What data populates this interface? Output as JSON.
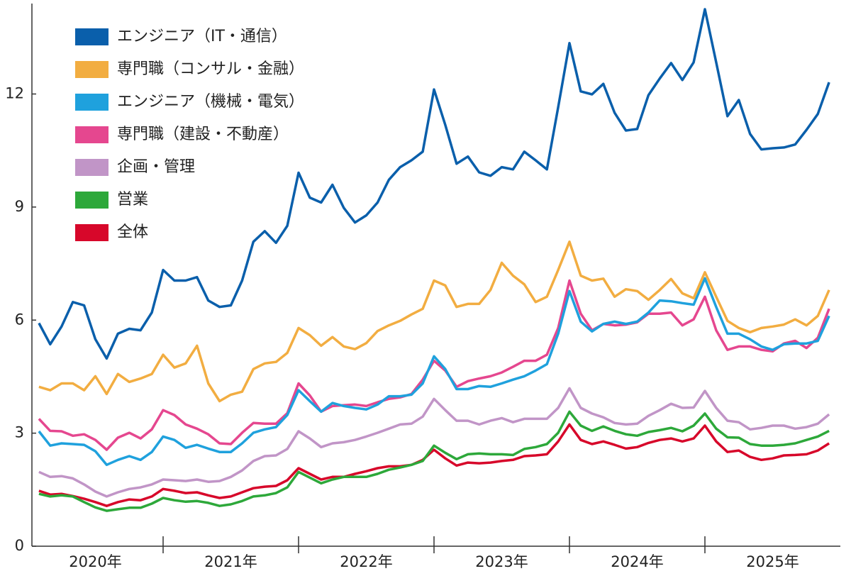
{
  "chart_data": {
    "type": "line",
    "x": [
      1,
      2,
      3,
      4,
      5,
      6,
      7,
      8,
      9,
      10,
      11,
      12,
      13,
      14,
      15,
      16,
      17,
      18,
      19,
      20,
      21,
      22,
      23,
      24,
      25,
      26,
      27,
      28,
      29,
      30,
      31,
      32,
      33,
      34,
      35,
      36,
      37,
      38,
      39,
      40,
      41,
      42,
      43,
      44,
      45,
      46,
      47,
      48,
      49,
      50,
      51,
      52,
      53,
      54,
      55,
      56,
      57,
      58,
      59,
      60,
      61,
      62,
      63,
      64,
      65,
      66,
      67,
      68,
      69,
      70,
      71
    ],
    "xlim": [
      0,
      72
    ],
    "xticks": [
      {
        "value": 6,
        "label": "2020年"
      },
      {
        "value": 18,
        "label": "2021年"
      },
      {
        "value": 30,
        "label": "2022年"
      },
      {
        "value": 42,
        "label": "2023年"
      },
      {
        "value": 54,
        "label": "2024年"
      },
      {
        "value": 66,
        "label": "2025年"
      }
    ],
    "ylim": [
      0,
      14.4
    ],
    "yticks": [
      0,
      3,
      6,
      9,
      12
    ],
    "legend": "top-left",
    "series": [
      {
        "name": "エンジニア（IT・通信）",
        "color": "#0a5fab",
        "values": [
          5.92,
          5.36,
          5.83,
          6.48,
          6.39,
          5.49,
          4.98,
          5.64,
          5.77,
          5.73,
          6.2,
          7.33,
          7.05,
          7.05,
          7.14,
          6.52,
          6.35,
          6.39,
          7.05,
          8.08,
          8.36,
          8.05,
          8.5,
          9.91,
          9.25,
          9.12,
          9.59,
          8.98,
          8.59,
          8.78,
          9.12,
          9.72,
          10.06,
          10.24,
          10.47,
          12.12,
          11.18,
          10.15,
          10.34,
          9.92,
          9.83,
          10.06,
          10.0,
          10.47,
          10.24,
          10.0,
          11.65,
          13.35,
          12.07,
          11.99,
          12.27,
          11.5,
          11.03,
          11.07,
          11.97,
          12.41,
          12.82,
          12.37,
          12.84,
          14.25,
          12.84,
          11.41,
          11.84,
          10.94,
          10.53,
          10.56,
          10.58,
          10.66,
          11.05,
          11.47,
          12.31
        ]
      },
      {
        "name": "専門職（コンサル・金融）",
        "color": "#f2ad41",
        "values": [
          4.23,
          4.14,
          4.32,
          4.32,
          4.14,
          4.51,
          4.04,
          4.57,
          4.36,
          4.45,
          4.57,
          5.08,
          4.74,
          4.85,
          5.32,
          4.32,
          3.85,
          4.02,
          4.1,
          4.7,
          4.85,
          4.89,
          5.13,
          5.79,
          5.6,
          5.32,
          5.55,
          5.3,
          5.23,
          5.39,
          5.71,
          5.86,
          5.98,
          6.15,
          6.3,
          7.05,
          6.92,
          6.35,
          6.43,
          6.43,
          6.8,
          7.52,
          7.18,
          6.95,
          6.48,
          6.62,
          7.33,
          8.08,
          7.18,
          7.05,
          7.1,
          6.62,
          6.82,
          6.77,
          6.54,
          6.8,
          7.09,
          6.71,
          6.58,
          7.27,
          6.62,
          5.98,
          5.79,
          5.68,
          5.79,
          5.83,
          5.88,
          6.02,
          5.86,
          6.11,
          6.8
        ]
      },
      {
        "name": "エンジニア（機械・電気）",
        "color": "#1fa1dd",
        "values": [
          3.05,
          2.67,
          2.73,
          2.71,
          2.69,
          2.52,
          2.16,
          2.29,
          2.39,
          2.29,
          2.5,
          2.91,
          2.82,
          2.61,
          2.69,
          2.59,
          2.5,
          2.5,
          2.73,
          3.01,
          3.1,
          3.16,
          3.48,
          4.14,
          3.85,
          3.57,
          3.8,
          3.72,
          3.67,
          3.63,
          3.76,
          3.98,
          3.98,
          4.02,
          4.32,
          5.04,
          4.7,
          4.17,
          4.17,
          4.25,
          4.23,
          4.32,
          4.42,
          4.51,
          4.66,
          4.83,
          5.64,
          6.77,
          5.96,
          5.7,
          5.9,
          5.96,
          5.9,
          5.96,
          6.2,
          6.52,
          6.5,
          6.45,
          6.41,
          7.11,
          6.35,
          5.64,
          5.64,
          5.49,
          5.3,
          5.21,
          5.36,
          5.38,
          5.38,
          5.45,
          6.11
        ]
      },
      {
        "name": "専門職（建設・不動産）",
        "color": "#e5478f",
        "values": [
          3.38,
          3.06,
          3.05,
          2.93,
          2.97,
          2.82,
          2.56,
          2.88,
          3.01,
          2.86,
          3.1,
          3.61,
          3.48,
          3.23,
          3.12,
          2.97,
          2.73,
          2.71,
          3.01,
          3.27,
          3.25,
          3.25,
          3.53,
          4.32,
          4.0,
          3.57,
          3.72,
          3.74,
          3.76,
          3.72,
          3.82,
          3.91,
          3.95,
          4.04,
          4.42,
          4.92,
          4.66,
          4.23,
          4.38,
          4.45,
          4.51,
          4.61,
          4.76,
          4.92,
          4.92,
          5.08,
          5.79,
          7.05,
          6.17,
          5.73,
          5.9,
          5.86,
          5.88,
          5.94,
          6.17,
          6.17,
          6.2,
          5.86,
          6.02,
          6.62,
          5.73,
          5.21,
          5.3,
          5.3,
          5.21,
          5.17,
          5.38,
          5.45,
          5.26,
          5.53,
          6.3
        ]
      },
      {
        "name": "企画・管理",
        "color": "#c195c7",
        "values": [
          1.97,
          1.84,
          1.86,
          1.8,
          1.64,
          1.45,
          1.32,
          1.43,
          1.52,
          1.56,
          1.64,
          1.77,
          1.75,
          1.73,
          1.77,
          1.71,
          1.73,
          1.84,
          2.01,
          2.26,
          2.39,
          2.41,
          2.58,
          3.05,
          2.86,
          2.63,
          2.73,
          2.76,
          2.82,
          2.91,
          3.01,
          3.12,
          3.23,
          3.25,
          3.44,
          3.91,
          3.61,
          3.33,
          3.33,
          3.23,
          3.33,
          3.4,
          3.29,
          3.38,
          3.38,
          3.38,
          3.67,
          4.19,
          3.67,
          3.52,
          3.42,
          3.27,
          3.23,
          3.25,
          3.46,
          3.61,
          3.78,
          3.67,
          3.68,
          4.12,
          3.67,
          3.33,
          3.29,
          3.1,
          3.14,
          3.2,
          3.2,
          3.12,
          3.16,
          3.25,
          3.5
        ]
      },
      {
        "name": "営業",
        "color": "#2da83a",
        "values": [
          1.39,
          1.32,
          1.35,
          1.32,
          1.17,
          1.03,
          0.94,
          0.98,
          1.02,
          1.02,
          1.13,
          1.28,
          1.22,
          1.18,
          1.2,
          1.15,
          1.07,
          1.11,
          1.2,
          1.32,
          1.35,
          1.41,
          1.56,
          1.97,
          1.82,
          1.67,
          1.77,
          1.84,
          1.84,
          1.84,
          1.92,
          2.03,
          2.09,
          2.16,
          2.26,
          2.67,
          2.48,
          2.31,
          2.44,
          2.46,
          2.44,
          2.44,
          2.42,
          2.58,
          2.63,
          2.71,
          3.01,
          3.57,
          3.2,
          3.06,
          3.18,
          3.06,
          2.97,
          2.93,
          3.03,
          3.08,
          3.14,
          3.05,
          3.2,
          3.52,
          3.12,
          2.89,
          2.88,
          2.71,
          2.67,
          2.67,
          2.69,
          2.73,
          2.82,
          2.91,
          3.06
        ]
      },
      {
        "name": "全体",
        "color": "#d7072a",
        "values": [
          1.47,
          1.37,
          1.39,
          1.33,
          1.26,
          1.17,
          1.07,
          1.17,
          1.24,
          1.22,
          1.32,
          1.52,
          1.47,
          1.41,
          1.43,
          1.35,
          1.28,
          1.32,
          1.43,
          1.54,
          1.58,
          1.6,
          1.75,
          2.07,
          1.92,
          1.77,
          1.84,
          1.84,
          1.92,
          1.99,
          2.07,
          2.12,
          2.12,
          2.16,
          2.29,
          2.56,
          2.33,
          2.14,
          2.22,
          2.2,
          2.22,
          2.26,
          2.29,
          2.39,
          2.41,
          2.44,
          2.78,
          3.23,
          2.82,
          2.71,
          2.78,
          2.69,
          2.59,
          2.63,
          2.74,
          2.82,
          2.86,
          2.78,
          2.86,
          3.2,
          2.78,
          2.5,
          2.54,
          2.37,
          2.29,
          2.33,
          2.41,
          2.42,
          2.44,
          2.54,
          2.73
        ]
      }
    ]
  }
}
